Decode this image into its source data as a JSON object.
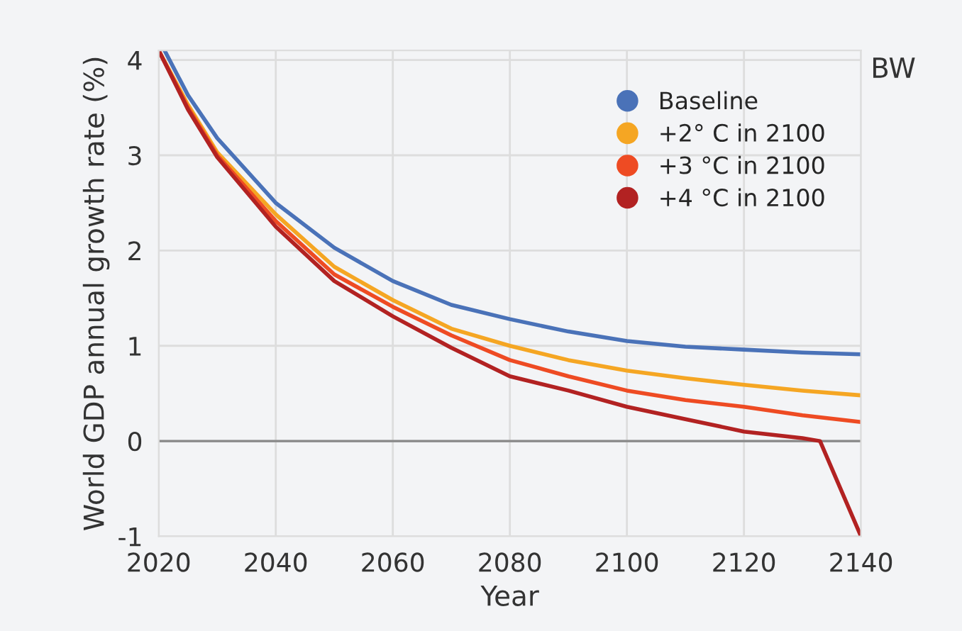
{
  "chart_data": {
    "type": "line",
    "xlabel": "Year",
    "ylabel": "World GDP annual growth rate (%)",
    "annotations": [
      "BW"
    ],
    "xlim": [
      2020,
      2140
    ],
    "xticks": [
      2020,
      2040,
      2060,
      2080,
      2100,
      2120,
      2140
    ],
    "ylim": [
      -1,
      4.1
    ],
    "yticks": [
      -1,
      0,
      1,
      2,
      3,
      4
    ],
    "grid": true,
    "legend": "top right",
    "marker": "none",
    "line_style": "solid",
    "ref_lines": [
      {
        "axis": "y",
        "value": 0,
        "color": "#888888"
      }
    ],
    "series": [
      {
        "name": "Baseline",
        "color": "#4a72b8",
        "x": [
          2021,
          2025,
          2030,
          2040,
          2050,
          2060,
          2070,
          2080,
          2090,
          2100,
          2110,
          2120,
          2130,
          2140
        ],
        "values": [
          4.1,
          3.63,
          3.18,
          2.5,
          2.03,
          1.68,
          1.43,
          1.28,
          1.15,
          1.05,
          0.99,
          0.96,
          0.93,
          0.91
        ]
      },
      {
        "name": "+2° C in 2100",
        "color": "#f5a623",
        "x": [
          2020,
          2025,
          2030,
          2040,
          2050,
          2060,
          2070,
          2080,
          2090,
          2100,
          2110,
          2120,
          2130,
          2140
        ],
        "values": [
          4.1,
          3.53,
          3.03,
          2.38,
          1.83,
          1.48,
          1.18,
          1.0,
          0.85,
          0.74,
          0.66,
          0.59,
          0.53,
          0.48
        ]
      },
      {
        "name": "+3 °C in 2100",
        "color": "#ee4b23",
        "x": [
          2020,
          2025,
          2030,
          2040,
          2050,
          2060,
          2070,
          2080,
          2090,
          2100,
          2110,
          2120,
          2130,
          2140
        ],
        "values": [
          4.1,
          3.5,
          3.0,
          2.31,
          1.75,
          1.41,
          1.11,
          0.85,
          0.68,
          0.53,
          0.43,
          0.36,
          0.27,
          0.2
        ]
      },
      {
        "name": "+4 °C in 2100",
        "color": "#b22222",
        "x": [
          2020,
          2025,
          2030,
          2040,
          2050,
          2060,
          2070,
          2080,
          2090,
          2100,
          2110,
          2120,
          2130,
          2133,
          2140
        ],
        "values": [
          4.1,
          3.48,
          2.98,
          2.25,
          1.68,
          1.31,
          0.98,
          0.68,
          0.53,
          0.36,
          0.23,
          0.1,
          0.03,
          0.0,
          -1.0
        ]
      }
    ]
  }
}
